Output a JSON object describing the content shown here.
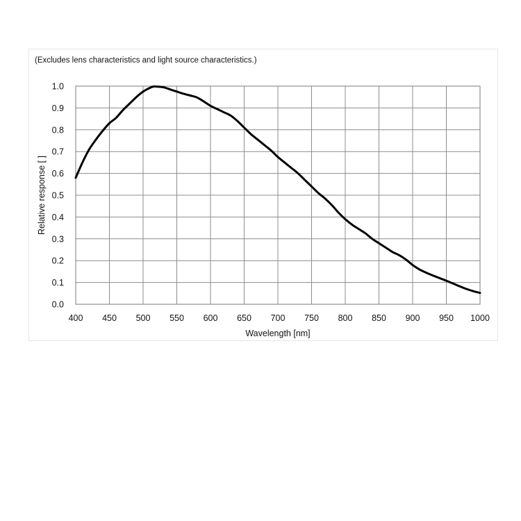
{
  "chart_data": {
    "type": "line",
    "title": "(Excludes lens characteristics and light source characteristics.)",
    "xlabel": "Wavelength [nm]",
    "ylabel": "Relative response [ ]",
    "xlim": [
      400,
      1000
    ],
    "ylim": [
      0.0,
      1.0
    ],
    "x_ticks": [
      "400",
      "450",
      "500",
      "550",
      "600",
      "650",
      "700",
      "750",
      "800",
      "850",
      "900",
      "950",
      "1000"
    ],
    "y_ticks": [
      "0.0",
      "0.1",
      "0.2",
      "0.3",
      "0.4",
      "0.5",
      "0.6",
      "0.7",
      "0.8",
      "0.9",
      "1.0"
    ],
    "grid": true,
    "series": [
      {
        "name": "Relative response",
        "color": "#000000",
        "x": [
          400,
          410,
          420,
          430,
          440,
          450,
          460,
          470,
          480,
          490,
          500,
          510,
          515,
          520,
          530,
          540,
          550,
          560,
          570,
          580,
          590,
          600,
          610,
          620,
          630,
          640,
          650,
          660,
          670,
          680,
          690,
          700,
          710,
          720,
          730,
          740,
          750,
          760,
          770,
          780,
          790,
          800,
          810,
          820,
          830,
          840,
          850,
          860,
          870,
          880,
          890,
          900,
          910,
          920,
          930,
          940,
          950,
          960,
          970,
          980,
          990,
          1000
        ],
        "values": [
          0.58,
          0.65,
          0.71,
          0.755,
          0.795,
          0.83,
          0.855,
          0.89,
          0.92,
          0.95,
          0.975,
          0.992,
          0.998,
          0.998,
          0.995,
          0.985,
          0.975,
          0.965,
          0.957,
          0.948,
          0.93,
          0.91,
          0.895,
          0.88,
          0.865,
          0.84,
          0.81,
          0.78,
          0.755,
          0.73,
          0.705,
          0.675,
          0.65,
          0.625,
          0.6,
          0.57,
          0.54,
          0.51,
          0.485,
          0.455,
          0.42,
          0.39,
          0.365,
          0.345,
          0.325,
          0.3,
          0.28,
          0.26,
          0.24,
          0.225,
          0.205,
          0.18,
          0.16,
          0.145,
          0.132,
          0.12,
          0.108,
          0.095,
          0.082,
          0.07,
          0.06,
          0.052
        ]
      }
    ]
  }
}
